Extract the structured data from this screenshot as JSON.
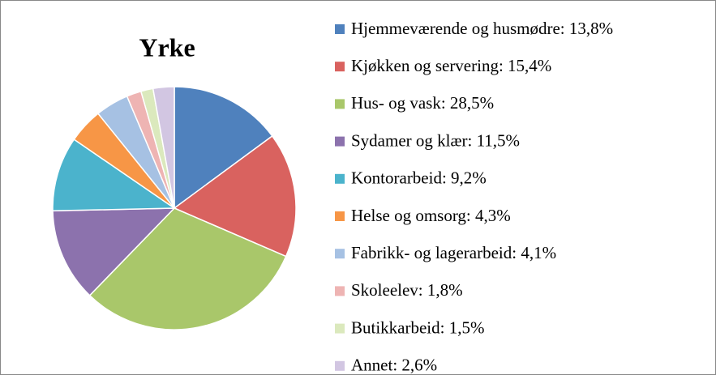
{
  "chart_data": {
    "type": "pie",
    "title": "Yrke",
    "categories": [
      "Hjemmeværende og husmødre: 13,8%",
      "Kjøkken og servering: 15,4%",
      "Hus- og vask: 28,5%",
      "Sydamer og klær: 11,5%",
      "Kontorarbeid: 9,2%",
      "Helse og omsorg: 4,3%",
      "Fabrikk- og lagerarbeid: 4,1%",
      "Skoleelev: 1,8%",
      "Butikkarbeid: 1,5%",
      "Annet: 2,6%"
    ],
    "values": [
      13.8,
      15.4,
      28.5,
      11.5,
      9.2,
      4.3,
      4.1,
      1.8,
      1.5,
      2.6
    ],
    "colors": [
      "#4f81bd",
      "#d9625f",
      "#a9c76a",
      "#8c72ad",
      "#4bb3cc",
      "#f79646",
      "#a6c1e3",
      "#eeb4b3",
      "#dbe9bd",
      "#d2c6e2"
    ],
    "legend": "right"
  }
}
